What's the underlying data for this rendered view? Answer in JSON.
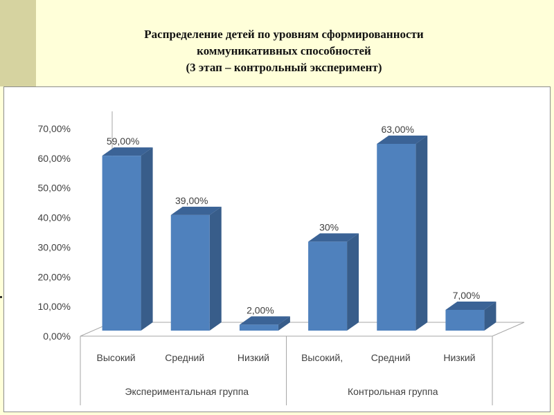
{
  "slide": {
    "title_lines": [
      "Распределение детей по уровням сформированности",
      "коммуникативных способностей",
      "(3 этап – контрольный эксперимент)"
    ]
  },
  "colors": {
    "background": "#ffffd9",
    "bar_front": "#4f81bd",
    "bar_side": "#385d8a",
    "bar_top": "#3b6396",
    "axis_text": "#404040"
  },
  "chart_data": {
    "type": "bar",
    "style": "3d-clustered-column",
    "title": "",
    "ylim": [
      0,
      70
    ],
    "y_ticks": [
      "0,00%",
      "10,00%",
      "20,00%",
      "30,00%",
      "40,00%",
      "50,00%",
      "60,00%",
      "70,00%"
    ],
    "y_tick_values": [
      0,
      10,
      20,
      30,
      40,
      50,
      60,
      70
    ],
    "categories": [
      "Высокий",
      "Средний",
      "Низкий",
      "Высокий,",
      "Средний",
      "Низкий"
    ],
    "values": [
      59,
      39,
      2,
      30,
      63,
      7
    ],
    "data_labels": [
      "59,00%",
      "39,00%",
      "2,00%",
      "30%",
      "63,00%",
      "7,00%"
    ],
    "groups": [
      {
        "label": "Экспериментальная группа",
        "category_indices": [
          0,
          1,
          2
        ]
      },
      {
        "label": "Контрольная группа",
        "category_indices": [
          3,
          4,
          5
        ]
      }
    ],
    "grid": false,
    "legend": "none"
  }
}
